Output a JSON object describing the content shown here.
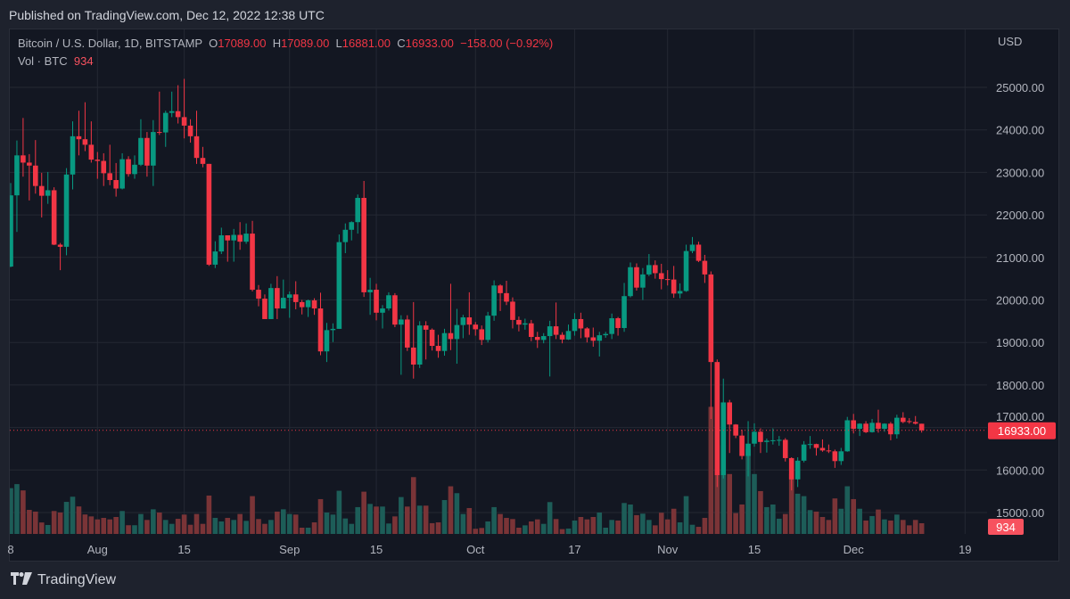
{
  "published": "Published on TradingView.com, Dec 12, 2022 12:38 UTC",
  "legend": {
    "symbol": "Bitcoin / U.S. Dollar, 1D, BITSTAMP",
    "o_label": "O",
    "o": "17089.00",
    "h_label": "H",
    "h": "17089.00",
    "l_label": "L",
    "l": "16881.00",
    "c_label": "C",
    "c": "16933.00",
    "change": "−158.00 (−0.92%)",
    "vol_label": "Vol · BTC",
    "vol": "934"
  },
  "footer": {
    "brand": "TradingView",
    "logo_icon": "tradingview-logo-icon"
  },
  "colors": {
    "up": "#089981",
    "down": "#f23645",
    "vol_up": "#1d5d58",
    "vol_down": "#7a3437",
    "price_tag": "#f23645",
    "vol_tag": "#f7525f"
  },
  "chart_data": {
    "type": "candlestick",
    "title": "Bitcoin / U.S. Dollar, 1D, BITSTAMP",
    "currency_label": "USD",
    "first_date": "2022-07-18",
    "last_date": "2022-12-12",
    "ylim": [
      14700,
      25700
    ],
    "y_ticks": [
      "25000.00",
      "24000.00",
      "23000.00",
      "22000.00",
      "21000.00",
      "20000.00",
      "19000.00",
      "18000.00",
      "17000.00",
      "16000.00",
      "15000.00"
    ],
    "y_tick_values": [
      25000,
      24000,
      23000,
      22000,
      21000,
      20000,
      19000,
      18000,
      17000,
      16000,
      15000
    ],
    "x_ticks": [
      {
        "label": "8",
        "day": 0
      },
      {
        "label": "Aug",
        "day": 14
      },
      {
        "label": "15",
        "day": 28
      },
      {
        "label": "Sep",
        "day": 45
      },
      {
        "label": "15",
        "day": 59
      },
      {
        "label": "Oct",
        "day": 75
      },
      {
        "label": "17",
        "day": 91
      },
      {
        "label": "Nov",
        "day": 106
      },
      {
        "label": "15",
        "day": 120
      },
      {
        "label": "Dec",
        "day": 136
      },
      {
        "label": "19",
        "day": 154
      }
    ],
    "last_price": 16933,
    "last_price_label": "16933.00",
    "last_volume": 934,
    "last_volume_label": "934",
    "candles_ohlc": [
      [
        20785,
        22750,
        20770,
        22460
      ],
      [
        22460,
        23750,
        21600,
        23400
      ],
      [
        23400,
        24280,
        22900,
        23230
      ],
      [
        23230,
        23430,
        22340,
        23160
      ],
      [
        23160,
        23760,
        22500,
        22680
      ],
      [
        22680,
        22990,
        21940,
        22450
      ],
      [
        22450,
        23010,
        22260,
        22580
      ],
      [
        22580,
        22650,
        21290,
        21300
      ],
      [
        21300,
        21340,
        20700,
        21250
      ],
      [
        21250,
        23100,
        21050,
        22950
      ],
      [
        22950,
        24200,
        22600,
        23850
      ],
      [
        23850,
        24450,
        23400,
        23780
      ],
      [
        23780,
        24650,
        23500,
        23650
      ],
      [
        23650,
        24200,
        23230,
        23300
      ],
      [
        23300,
        23480,
        22850,
        23270
      ],
      [
        23270,
        23450,
        22680,
        22980
      ],
      [
        22980,
        23650,
        22700,
        22820
      ],
      [
        22820,
        23220,
        22430,
        22620
      ],
      [
        22620,
        23450,
        22600,
        23310
      ],
      [
        23310,
        23380,
        22900,
        22960
      ],
      [
        22960,
        23400,
        22850,
        23180
      ],
      [
        23180,
        24250,
        23150,
        23810
      ],
      [
        23810,
        23950,
        22900,
        23160
      ],
      [
        23160,
        24230,
        22680,
        23950
      ],
      [
        23950,
        24900,
        23880,
        23940
      ],
      [
        23940,
        24450,
        23600,
        24400
      ],
      [
        24400,
        24900,
        24300,
        24440
      ],
      [
        24440,
        25050,
        24150,
        24300
      ],
      [
        24300,
        25200,
        23800,
        24100
      ],
      [
        24100,
        24250,
        23700,
        23850
      ],
      [
        23850,
        24450,
        23200,
        23340
      ],
      [
        23340,
        23600,
        23120,
        23200
      ],
      [
        23200,
        23200,
        20800,
        20830
      ],
      [
        20830,
        21380,
        20750,
        21140
      ],
      [
        21140,
        21700,
        21080,
        21520
      ],
      [
        21520,
        21520,
        20900,
        21400
      ],
      [
        21400,
        21670,
        20900,
        21530
      ],
      [
        21530,
        21830,
        21180,
        21370
      ],
      [
        21370,
        21800,
        21320,
        21560
      ],
      [
        21560,
        21860,
        20200,
        20240
      ],
      [
        20240,
        20350,
        19850,
        20030
      ],
      [
        20030,
        20130,
        19560,
        19550
      ],
      [
        19550,
        20380,
        19550,
        20280
      ],
      [
        20280,
        20560,
        19550,
        19800
      ],
      [
        19800,
        20480,
        19800,
        20050
      ],
      [
        20050,
        20200,
        19580,
        20130
      ],
      [
        20130,
        20440,
        19780,
        19950
      ],
      [
        19950,
        20000,
        19660,
        19830
      ],
      [
        19830,
        20010,
        19600,
        19990
      ],
      [
        19990,
        20040,
        19650,
        19800
      ],
      [
        19800,
        20170,
        18700,
        18790
      ],
      [
        18790,
        19460,
        18540,
        19290
      ],
      [
        19290,
        19450,
        19010,
        19320
      ],
      [
        19320,
        21540,
        19320,
        21360
      ],
      [
        21360,
        21800,
        21100,
        21650
      ],
      [
        21650,
        21850,
        21400,
        21830
      ],
      [
        21830,
        22480,
        21560,
        22400
      ],
      [
        22400,
        22800,
        20070,
        20180
      ],
      [
        20180,
        20520,
        19650,
        20240
      ],
      [
        20240,
        20380,
        19520,
        19700
      ],
      [
        19700,
        19880,
        19330,
        19800
      ],
      [
        19800,
        20180,
        19750,
        20110
      ],
      [
        20110,
        20160,
        19360,
        19420
      ],
      [
        19420,
        19640,
        18240,
        19540
      ],
      [
        19540,
        19640,
        18800,
        18880
      ],
      [
        18880,
        19950,
        18150,
        18480
      ],
      [
        18480,
        19500,
        18400,
        19400
      ],
      [
        19400,
        19500,
        18600,
        19300
      ],
      [
        19300,
        19330,
        18810,
        18920
      ],
      [
        18920,
        19180,
        18640,
        18800
      ],
      [
        18800,
        19320,
        18690,
        19220
      ],
      [
        19220,
        20380,
        18820,
        19080
      ],
      [
        19080,
        19790,
        18500,
        19410
      ],
      [
        19410,
        19650,
        19100,
        19590
      ],
      [
        19590,
        20180,
        19180,
        19420
      ],
      [
        19420,
        19480,
        19160,
        19310
      ],
      [
        19310,
        19400,
        18940,
        19060
      ],
      [
        19060,
        19720,
        19000,
        19630
      ],
      [
        19630,
        20460,
        19510,
        20340
      ],
      [
        20340,
        20370,
        19740,
        20160
      ],
      [
        20160,
        20450,
        19880,
        19960
      ],
      [
        19960,
        20060,
        19330,
        19530
      ],
      [
        19530,
        19610,
        19260,
        19420
      ],
      [
        19420,
        19560,
        19300,
        19450
      ],
      [
        19450,
        19530,
        19030,
        19130
      ],
      [
        19130,
        19250,
        18870,
        19060
      ],
      [
        19060,
        19220,
        18980,
        19150
      ],
      [
        19150,
        19510,
        18200,
        19380
      ],
      [
        19380,
        19940,
        19080,
        19180
      ],
      [
        19180,
        19240,
        18980,
        19070
      ],
      [
        19070,
        19420,
        19060,
        19270
      ],
      [
        19270,
        19690,
        19160,
        19550
      ],
      [
        19550,
        19700,
        19100,
        19330
      ],
      [
        19330,
        19360,
        19000,
        19120
      ],
      [
        19120,
        19350,
        18900,
        19040
      ],
      [
        19040,
        19250,
        18670,
        19170
      ],
      [
        19170,
        19250,
        19110,
        19200
      ],
      [
        19200,
        19680,
        19080,
        19570
      ],
      [
        19570,
        19600,
        19160,
        19340
      ],
      [
        19340,
        20400,
        19250,
        20090
      ],
      [
        20090,
        20880,
        20060,
        20770
      ],
      [
        20770,
        20860,
        20220,
        20290
      ],
      [
        20290,
        20750,
        20000,
        20600
      ],
      [
        20600,
        21080,
        20560,
        20820
      ],
      [
        20820,
        20930,
        20500,
        20630
      ],
      [
        20630,
        20850,
        20250,
        20490
      ],
      [
        20490,
        20700,
        20340,
        20480
      ],
      [
        20480,
        20800,
        20050,
        20150
      ],
      [
        20150,
        20390,
        20040,
        20210
      ],
      [
        20210,
        21300,
        20190,
        21150
      ],
      [
        21150,
        21480,
        21100,
        21300
      ],
      [
        21300,
        21370,
        20890,
        20920
      ],
      [
        20920,
        21060,
        20400,
        20600
      ],
      [
        20600,
        20670,
        17200,
        18540
      ],
      [
        18540,
        18600,
        15600,
        15880
      ],
      [
        15880,
        18150,
        15800,
        17590
      ],
      [
        17590,
        17650,
        16400,
        17070
      ],
      [
        17070,
        17080,
        16750,
        16810
      ],
      [
        16810,
        16950,
        16250,
        16330
      ],
      [
        16330,
        17150,
        15850,
        16620
      ],
      [
        16620,
        17100,
        16550,
        16900
      ],
      [
        16900,
        16980,
        16400,
        16660
      ],
      [
        16660,
        16740,
        16410,
        16690
      ],
      [
        16690,
        16980,
        16600,
        16700
      ],
      [
        16700,
        16800,
        16570,
        16710
      ],
      [
        16710,
        16750,
        16200,
        16280
      ],
      [
        16280,
        16300,
        15520,
        15780
      ],
      [
        15780,
        16300,
        15600,
        16220
      ],
      [
        16220,
        16680,
        16180,
        16600
      ],
      [
        16600,
        16800,
        16500,
        16610
      ],
      [
        16610,
        16620,
        16340,
        16520
      ],
      [
        16520,
        16720,
        16430,
        16460
      ],
      [
        16460,
        16600,
        16400,
        16440
      ],
      [
        16440,
        16480,
        16050,
        16210
      ],
      [
        16210,
        16520,
        16120,
        16440
      ],
      [
        16440,
        17250,
        16430,
        17170
      ],
      [
        17170,
        17320,
        16860,
        16970
      ],
      [
        16970,
        17100,
        16800,
        17090
      ],
      [
        17090,
        17150,
        16870,
        16890
      ],
      [
        16890,
        17200,
        16880,
        17110
      ],
      [
        17110,
        17420,
        16880,
        16970
      ],
      [
        16970,
        17100,
        16900,
        17090
      ],
      [
        17090,
        17130,
        16700,
        16840
      ],
      [
        16840,
        17300,
        16740,
        17230
      ],
      [
        17230,
        17360,
        17100,
        17130
      ],
      [
        17150,
        17220,
        17090,
        17130
      ],
      [
        17130,
        17270,
        17070,
        17090
      ],
      [
        17089,
        17089,
        16881,
        16933
      ]
    ],
    "volumes_btc": [
      4000,
      4350,
      3800,
      2100,
      1950,
      1000,
      780,
      2000,
      1870,
      2800,
      3250,
      2400,
      1700,
      1530,
      1270,
      1400,
      1270,
      1480,
      2000,
      760,
      760,
      1740,
      1220,
      2150,
      1870,
      1220,
      880,
      1320,
      1690,
      800,
      1740,
      880,
      3350,
      1400,
      1090,
      1400,
      1220,
      1740,
      1140,
      3300,
      1300,
      880,
      1220,
      1950,
      2150,
      1740,
      1690,
      545,
      545,
      1010,
      3040,
      1870,
      1690,
      3770,
      1350,
      880,
      2340,
      3690,
      2620,
      2390,
      2390,
      910,
      1530,
      3220,
      2390,
      4960,
      2470,
      2470,
      940,
      1010,
      2960,
      4160,
      3560,
      1740,
      2260,
      450,
      520,
      1090,
      2340,
      1740,
      1400,
      1300,
      545,
      750,
      1090,
      1270,
      880,
      2780,
      1300,
      420,
      470,
      1170,
      1480,
      1270,
      1480,
      1870,
      545,
      1220,
      1170,
      2700,
      2570,
      1640,
      1770,
      1220,
      750,
      1850,
      1270,
      2200,
      1010,
      3300,
      800,
      620,
      1400,
      11100,
      7720,
      7720,
      5230,
      1820,
      2570,
      7410,
      5230,
      3740,
      2340,
      2570,
      1330,
      1740,
      5230,
      3510,
      3300,
      2080,
      1950,
      1480,
      1220,
      3100,
      2200,
      4160,
      3040,
      2200,
      1170,
      1560,
      2130,
      1270,
      1170,
      1690,
      1220,
      750,
      1220,
      934
    ]
  }
}
